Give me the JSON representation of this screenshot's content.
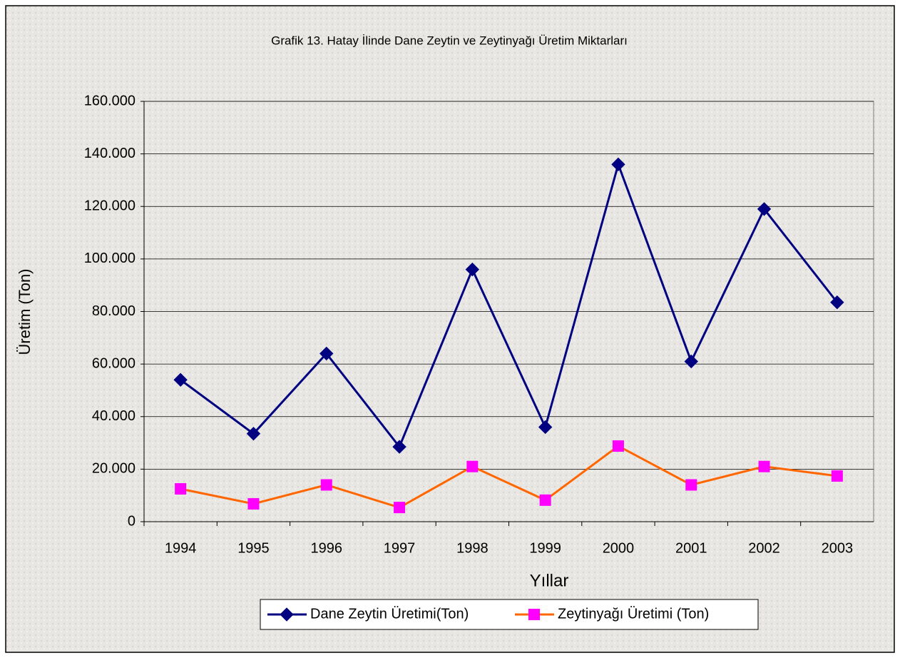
{
  "chart_data": {
    "type": "line",
    "title": "Grafik 13. Hatay İlinde Dane Zeytin ve Zeytinyağı Üretim Miktarları",
    "x_label": "Yıllar",
    "y_label": "Üretim (Ton)",
    "categories": [
      "1994",
      "1995",
      "1996",
      "1997",
      "1998",
      "1999",
      "2000",
      "2001",
      "2002",
      "2003"
    ],
    "series": [
      {
        "name": "Dane Zeytin Üretimi(Ton)",
        "color": "#000080",
        "marker_color": "#000080",
        "marker": "diamond",
        "values": [
          54000,
          33500,
          64000,
          28500,
          96000,
          36000,
          136000,
          61000,
          119000,
          83500
        ]
      },
      {
        "name": "Zeytinyağı Üretimi (Ton)",
        "color": "#ff6600",
        "marker_color": "#ff00ff",
        "marker": "square",
        "values": [
          12500,
          6800,
          14000,
          5400,
          21000,
          8200,
          28800,
          14000,
          21000,
          17400
        ]
      }
    ],
    "ylim": [
      0,
      160000
    ],
    "yticks": [
      0,
      {
        "value": 20000,
        "label": "20.000"
      },
      {
        "value": 40000,
        "label": "40.000"
      },
      {
        "value": 60000,
        "label": "60.000"
      },
      {
        "value": 80000,
        "label": "80.000"
      },
      {
        "value": 100000,
        "label": "100.000"
      },
      {
        "value": 120000,
        "label": "120.000"
      },
      {
        "value": 140000,
        "label": "140.000"
      },
      {
        "value": 160000,
        "label": "160.000"
      }
    ],
    "grid": true,
    "legend": "bottom"
  }
}
